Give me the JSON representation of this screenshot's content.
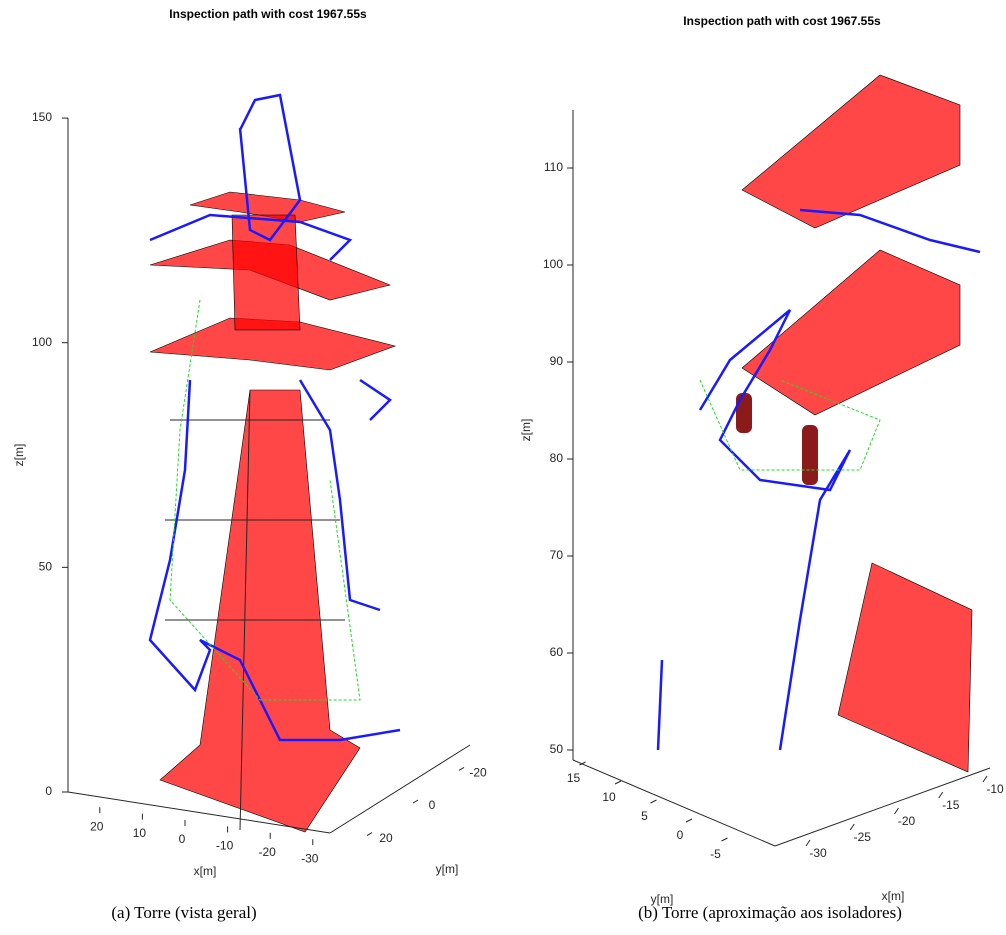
{
  "figures": [
    {
      "title": "Inspection path with cost 1967.55s",
      "caption": "(a) Torre (vista geral)",
      "xlabel": "x[m]",
      "ylabel": "y[m]",
      "zlabel": "z[m]",
      "zticks": [
        0,
        50,
        100,
        150
      ],
      "xticks": [
        20,
        10,
        0,
        -10,
        -20,
        -30
      ],
      "yticks": [
        -20,
        0,
        20
      ]
    },
    {
      "title": "Inspection path with cost 1967.55s",
      "caption": "(b) Torre (aproximação aos isoladores)",
      "xlabel": "x[m]",
      "ylabel": "y[m]",
      "zlabel": "z[m]",
      "zticks": [
        50,
        60,
        70,
        80,
        90,
        100,
        110
      ],
      "xticks": [
        -30,
        -25,
        -20,
        -15,
        -10
      ],
      "yticks": [
        15,
        10,
        5,
        0,
        -5
      ]
    }
  ]
}
